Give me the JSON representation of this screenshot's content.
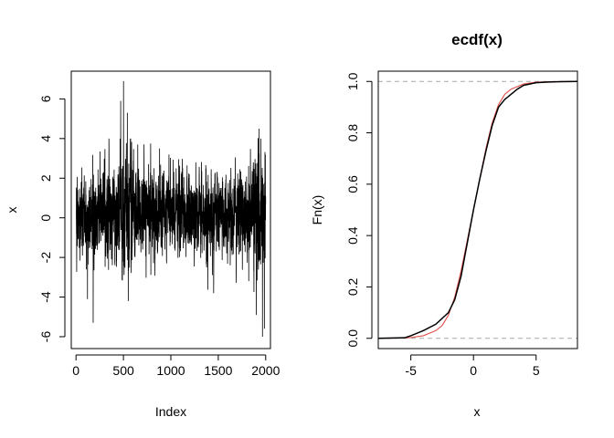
{
  "chart_data": [
    {
      "type": "line",
      "title": "",
      "xlabel": "Index",
      "ylabel": "x",
      "xlim": [
        -50,
        2050
      ],
      "ylim": [
        -6.6,
        7.4
      ],
      "x_ticks": [
        0,
        500,
        1000,
        1500,
        2000
      ],
      "x_tick_labels": [
        "0",
        "500",
        "1000",
        "1500",
        "2000"
      ],
      "y_ticks": [
        -6,
        -4,
        -2,
        0,
        2,
        4,
        6
      ],
      "y_tick_labels": [
        "-6",
        "-4",
        "-2",
        "0",
        "2",
        "4",
        "6"
      ],
      "line_color": "#000000",
      "series": [
        {
          "n": 2000,
          "notable_points": [
            {
              "x": 120,
              "y": -4.1
            },
            {
              "x": 180,
              "y": -5.3
            },
            {
              "x": 470,
              "y": 5.9
            },
            {
              "x": 500,
              "y": 6.9
            },
            {
              "x": 540,
              "y": 5.3
            },
            {
              "x": 650,
              "y": 3.7
            },
            {
              "x": 880,
              "y": 3.5
            },
            {
              "x": 1450,
              "y": -3.8
            },
            {
              "x": 1820,
              "y": -3.2
            },
            {
              "x": 1900,
              "y": -4.9
            },
            {
              "x": 1930,
              "y": 4.5
            },
            {
              "x": 1965,
              "y": -6.0
            },
            {
              "x": 1985,
              "y": -5.6
            },
            {
              "x": 1995,
              "y": 3.2
            }
          ]
        }
      ]
    },
    {
      "type": "line",
      "title": "ecdf(x)",
      "xlabel": "x",
      "ylabel": "Fn(x)",
      "xlim": [
        -7.6,
        8.3
      ],
      "ylim": [
        -0.04,
        1.04
      ],
      "x_ticks": [
        -5,
        0,
        5
      ],
      "x_tick_labels": [
        "-5",
        "0",
        "5"
      ],
      "y_ticks": [
        0.0,
        0.2,
        0.4,
        0.6,
        0.8,
        1.0
      ],
      "y_tick_labels": [
        "0.0",
        "0.2",
        "0.4",
        "0.6",
        "0.8",
        "1.0"
      ],
      "reference_lines": [
        0,
        1
      ],
      "series": [
        {
          "name": "",
          "color": "#000000",
          "x": [
            -7.6,
            -5.5,
            -5,
            -4,
            -3,
            -2,
            -1.5,
            -1,
            -0.5,
            0,
            0.5,
            1,
            1.5,
            2,
            2.5,
            3,
            3.5,
            4,
            5,
            6,
            7,
            8.3
          ],
          "y": [
            0.0,
            0.002,
            0.01,
            0.03,
            0.055,
            0.1,
            0.15,
            0.24,
            0.37,
            0.5,
            0.62,
            0.73,
            0.83,
            0.9,
            0.93,
            0.95,
            0.97,
            0.985,
            0.995,
            0.998,
            0.999,
            1.0
          ]
        },
        {
          "name": "",
          "color": "#e0504a",
          "x": [
            -7.6,
            -6,
            -5,
            -4,
            -3,
            -2.5,
            -2,
            -1.5,
            -1,
            -0.5,
            0,
            0.5,
            1,
            1.5,
            2,
            2.5,
            3,
            4,
            5,
            6,
            8.3
          ],
          "y": [
            0.0,
            0.001,
            0.003,
            0.01,
            0.03,
            0.05,
            0.09,
            0.16,
            0.26,
            0.38,
            0.5,
            0.62,
            0.74,
            0.84,
            0.91,
            0.95,
            0.97,
            0.99,
            0.997,
            0.999,
            1.0
          ]
        }
      ]
    }
  ]
}
